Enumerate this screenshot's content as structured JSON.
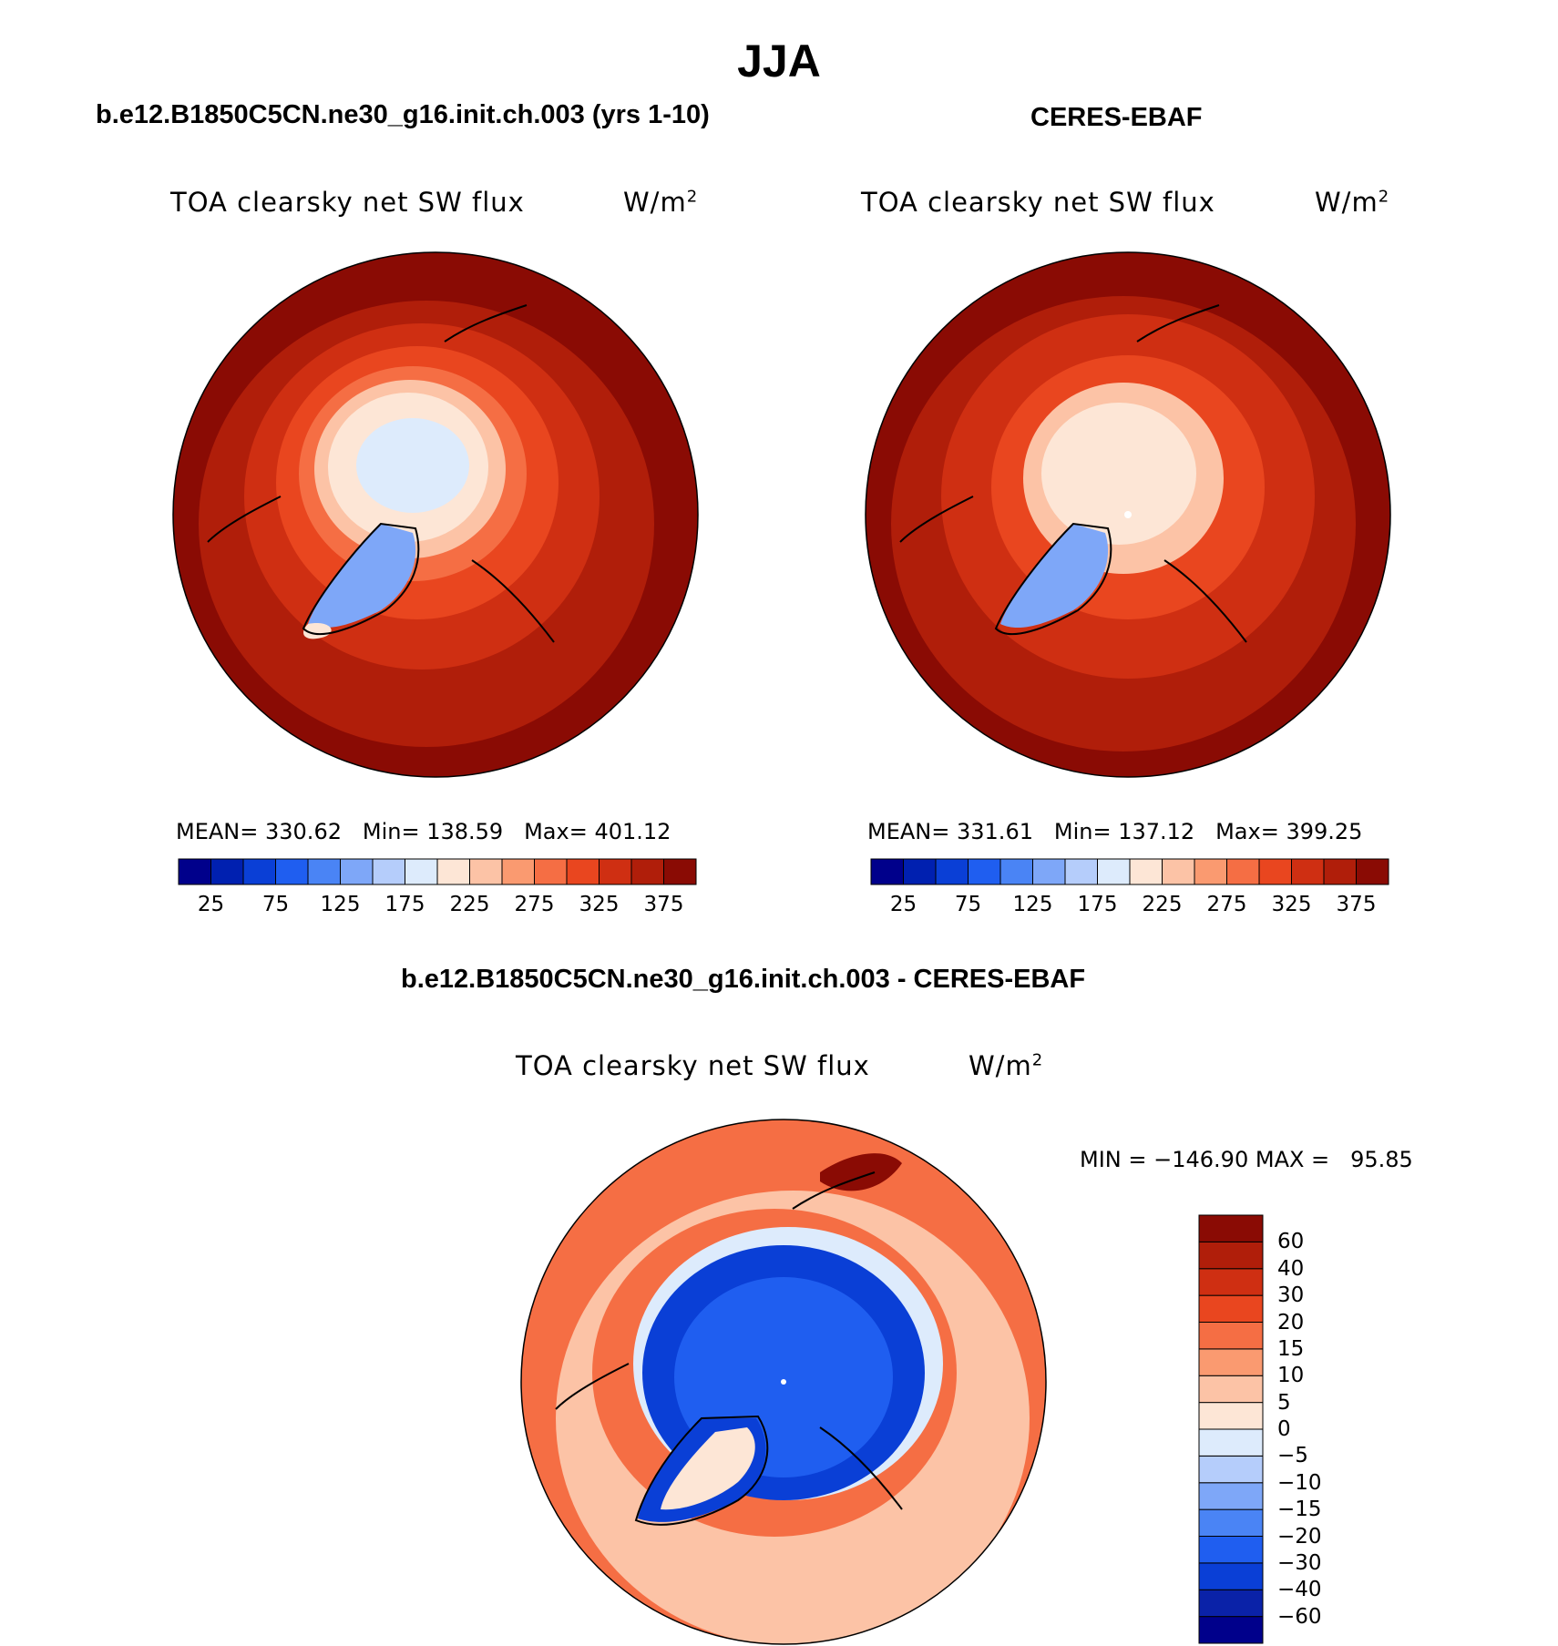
{
  "figure": {
    "title": "JJA",
    "top_left_title": "b.e12.B1850C5CN.ne30_g16.init.ch.003 (yrs 1-10)",
    "top_right_title": "CERES-EBAF",
    "diff_title": "b.e12.B1850C5CN.ne30_g16.init.ch.003 - CERES-EBAF"
  },
  "chart_data": [
    {
      "type": "heatmap",
      "projection": "north-polar-stereographic",
      "variable": "TOA clearsky net SW flux",
      "units": "W/m",
      "units_exp": "2",
      "stats": {
        "mean_label": "MEAN=",
        "mean": "330.62",
        "min_label": "Min=",
        "min": "138.59",
        "max_label": "Max=",
        "max": "401.12"
      },
      "colorbar": {
        "orientation": "horizontal",
        "levels": [
          25,
          50,
          75,
          100,
          125,
          150,
          175,
          200,
          225,
          250,
          275,
          300,
          325,
          350,
          375
        ],
        "tick_labels": [
          "25",
          "75",
          "125",
          "175",
          "225",
          "275",
          "325",
          "375"
        ],
        "colors": [
          "#00008b",
          "#0020b0",
          "#0a3fd6",
          "#1f5ef0",
          "#4a84f5",
          "#7ea7f8",
          "#b5cdfb",
          "#ddebfc",
          "#fde6d6",
          "#fcc3a6",
          "#fa9a70",
          "#f56e44",
          "#e9461f",
          "#cf2f12",
          "#b01e0a",
          "#8a0b04"
        ]
      }
    },
    {
      "type": "heatmap",
      "projection": "north-polar-stereographic",
      "variable": "TOA clearsky net SW flux",
      "units": "W/m",
      "units_exp": "2",
      "stats": {
        "mean_label": "MEAN=",
        "mean": "331.61",
        "min_label": "Min=",
        "min": "137.12",
        "max_label": "Max=",
        "max": "399.25"
      },
      "colorbar": {
        "orientation": "horizontal",
        "levels": [
          25,
          50,
          75,
          100,
          125,
          150,
          175,
          200,
          225,
          250,
          275,
          300,
          325,
          350,
          375
        ],
        "tick_labels": [
          "25",
          "75",
          "125",
          "175",
          "225",
          "275",
          "325",
          "375"
        ],
        "colors": [
          "#00008b",
          "#0020b0",
          "#0a3fd6",
          "#1f5ef0",
          "#4a84f5",
          "#7ea7f8",
          "#b5cdfb",
          "#ddebfc",
          "#fde6d6",
          "#fcc3a6",
          "#fa9a70",
          "#f56e44",
          "#e9461f",
          "#cf2f12",
          "#b01e0a",
          "#8a0b04"
        ]
      }
    },
    {
      "type": "heatmap",
      "projection": "north-polar-stereographic",
      "variable": "TOA clearsky net SW flux",
      "units": "W/m",
      "units_exp": "2",
      "stats": {
        "min_label": "MIN =",
        "min": "−146.90",
        "max_label": "MAX =",
        "max": "95.85"
      },
      "colorbar": {
        "orientation": "vertical",
        "levels": [
          -60,
          -40,
          -30,
          -20,
          -15,
          -10,
          -5,
          0,
          5,
          10,
          15,
          20,
          30,
          40,
          60
        ],
        "tick_labels": [
          "−60",
          "−40",
          "−30",
          "−20",
          "−15",
          "−10",
          "−5",
          "0",
          "5",
          "10",
          "15",
          "20",
          "30",
          "40",
          "60"
        ],
        "colors": [
          "#00008b",
          "#0a22a8",
          "#0a3fd6",
          "#1f5ef0",
          "#4a84f5",
          "#7ea7f8",
          "#b5cdfb",
          "#ddebfc",
          "#fde6d6",
          "#fcc3a6",
          "#fa9a70",
          "#f56e44",
          "#e9461f",
          "#cf2f12",
          "#b01e0a",
          "#8a0b04"
        ]
      }
    }
  ]
}
